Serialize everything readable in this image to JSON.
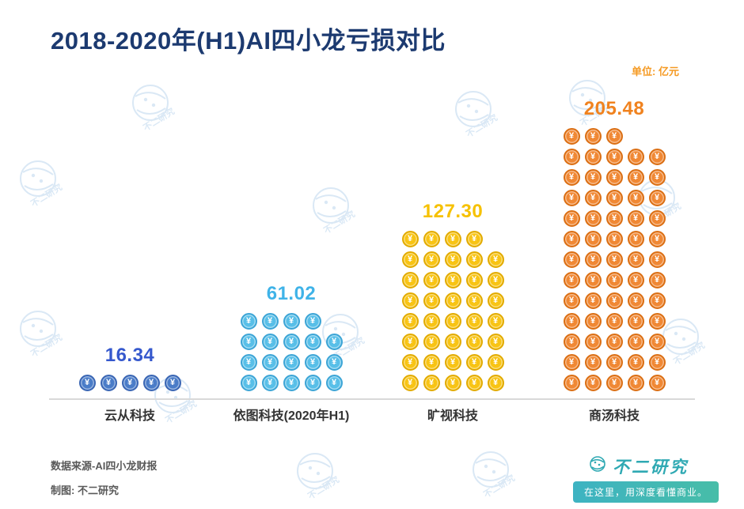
{
  "header": {
    "title": "2018-2020年(H1)AI四小龙亏损对比",
    "unit": "单位: 亿元"
  },
  "chart_data": {
    "type": "bar",
    "subtype": "pictograph-coin-stack",
    "title": "2018-2020年(H1)AI四小龙亏损对比",
    "ylabel": "单位: 亿元",
    "xlabel": "",
    "unit": "亿元",
    "coin_symbol": "¥",
    "icons_per_row": 5,
    "value_per_icon": 3.268,
    "categories": [
      "云从科技",
      "依图科技(2020年H1)",
      "旷视科技",
      "商汤科技"
    ],
    "values": [
      16.34,
      61.02,
      127.3,
      205.48
    ],
    "value_labels": [
      "16.34",
      "61.02",
      "127.30",
      "205.48"
    ],
    "icon_counts": [
      5,
      19,
      39,
      63
    ],
    "colors": [
      {
        "fill": "#4a7cc8",
        "edge": "#3a66b4",
        "label": "#3558cd"
      },
      {
        "fill": "#58bfe8",
        "edge": "#3da5d6",
        "label": "#3fb3e8"
      },
      {
        "fill": "#f8c414",
        "edge": "#e2ab00",
        "label": "#f6c100"
      },
      {
        "fill": "#f08834",
        "edge": "#db6f14",
        "label": "#f0821e"
      }
    ],
    "ylim": [
      0,
      220
    ],
    "grid": false,
    "legend": "none"
  },
  "footer": {
    "source": "数据来源-AI四小龙财报",
    "credit": "制图: 不二研究"
  },
  "brand": {
    "name": "不二研究",
    "tagline": "在这里，用深度看懂商业。"
  },
  "watermark": {
    "text": "不二研究"
  }
}
